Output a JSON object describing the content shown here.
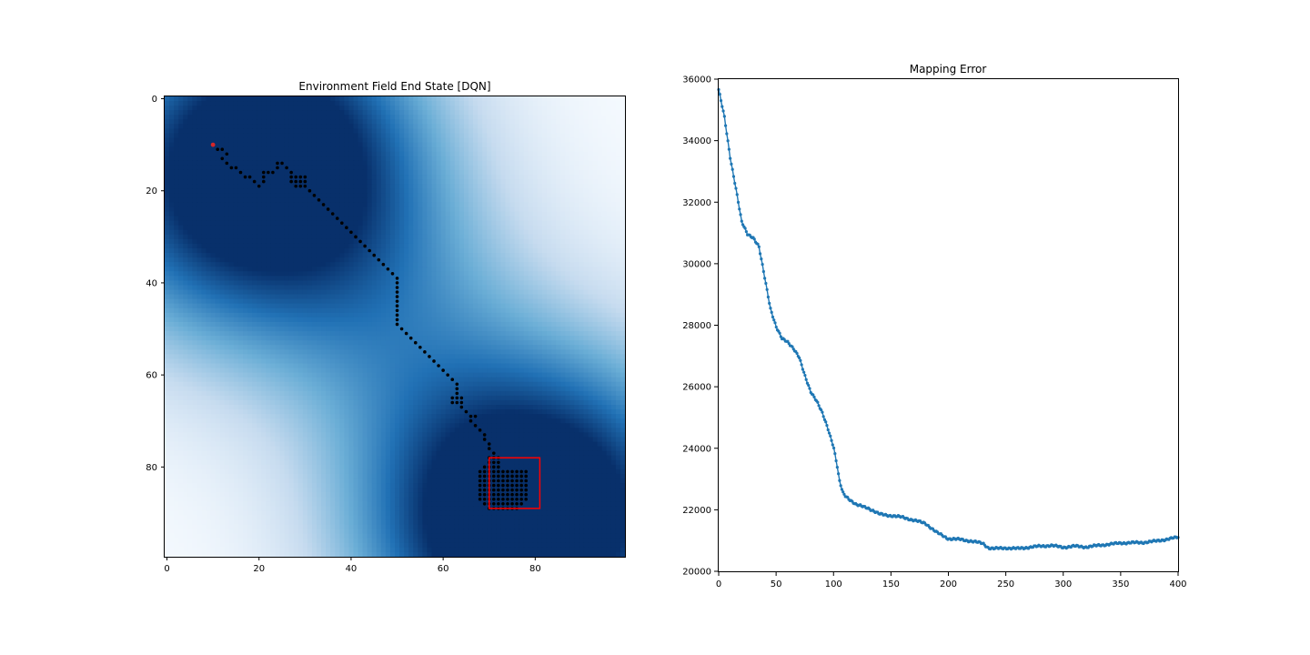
{
  "chart_data": [
    {
      "type": "heatmap",
      "title": "Environment Field End State [DQN]",
      "xlim": [
        0,
        99
      ],
      "ylim": [
        99,
        0
      ],
      "xticks": [
        0,
        20,
        40,
        60,
        80
      ],
      "yticks": [
        0,
        20,
        40,
        60,
        80
      ],
      "colormap": [
        "#f7fbff",
        "#c6dbef",
        "#6baed6",
        "#2171b5",
        "#08306b"
      ],
      "field_centers": [
        {
          "x": 25,
          "y": 10,
          "value": 1.0
        },
        {
          "x": 73,
          "y": 95,
          "value": 1.0
        },
        {
          "x": 5,
          "y": 25,
          "value": 0.45
        },
        {
          "x": 50,
          "y": 48,
          "value": 0.38
        },
        {
          "x": 92,
          "y": 85,
          "value": 0.5
        }
      ],
      "start_point": {
        "x": 10,
        "y": 10,
        "color": "#d62728"
      },
      "path": [
        [
          10,
          10
        ],
        [
          11,
          11
        ],
        [
          12,
          11
        ],
        [
          13,
          12
        ],
        [
          12,
          13
        ],
        [
          13,
          14
        ],
        [
          14,
          15
        ],
        [
          15,
          15
        ],
        [
          16,
          16
        ],
        [
          17,
          17
        ],
        [
          18,
          17
        ],
        [
          19,
          18
        ],
        [
          20,
          19
        ],
        [
          21,
          18
        ],
        [
          21,
          17
        ],
        [
          21,
          16
        ],
        [
          22,
          16
        ],
        [
          23,
          16
        ],
        [
          24,
          15
        ],
        [
          24,
          14
        ],
        [
          25,
          14
        ],
        [
          26,
          15
        ],
        [
          27,
          16
        ],
        [
          27,
          17
        ],
        [
          27,
          18
        ],
        [
          28,
          19
        ],
        [
          29,
          19
        ],
        [
          30,
          19
        ],
        [
          29,
          18
        ],
        [
          30,
          18
        ],
        [
          29,
          17
        ],
        [
          30,
          17
        ],
        [
          28,
          17
        ],
        [
          28,
          18
        ],
        [
          31,
          20
        ],
        [
          32,
          21
        ],
        [
          33,
          22
        ],
        [
          34,
          23
        ],
        [
          35,
          24
        ],
        [
          36,
          25
        ],
        [
          37,
          26
        ],
        [
          38,
          27
        ],
        [
          39,
          28
        ],
        [
          40,
          29
        ],
        [
          41,
          30
        ],
        [
          42,
          31
        ],
        [
          43,
          32
        ],
        [
          44,
          33
        ],
        [
          45,
          34
        ],
        [
          46,
          35
        ],
        [
          47,
          36
        ],
        [
          48,
          37
        ],
        [
          49,
          38
        ],
        [
          50,
          39
        ],
        [
          50,
          40
        ],
        [
          50,
          41
        ],
        [
          50,
          42
        ],
        [
          50,
          43
        ],
        [
          50,
          44
        ],
        [
          50,
          45
        ],
        [
          50,
          46
        ],
        [
          50,
          47
        ],
        [
          50,
          48
        ],
        [
          50,
          49
        ],
        [
          51,
          50
        ],
        [
          52,
          51
        ],
        [
          53,
          52
        ],
        [
          54,
          53
        ],
        [
          55,
          54
        ],
        [
          56,
          55
        ],
        [
          57,
          56
        ],
        [
          58,
          57
        ],
        [
          59,
          58
        ],
        [
          60,
          59
        ],
        [
          61,
          60
        ],
        [
          62,
          61
        ],
        [
          63,
          62
        ],
        [
          63,
          63
        ],
        [
          63,
          64
        ],
        [
          64,
          65
        ],
        [
          63,
          65
        ],
        [
          62,
          65
        ],
        [
          62,
          66
        ],
        [
          63,
          66
        ],
        [
          64,
          66
        ],
        [
          64,
          67
        ],
        [
          65,
          68
        ],
        [
          66,
          69
        ],
        [
          66,
          70
        ],
        [
          67,
          69
        ],
        [
          67,
          71
        ],
        [
          68,
          72
        ],
        [
          69,
          73
        ],
        [
          69,
          74
        ],
        [
          70,
          75
        ],
        [
          70,
          76
        ],
        [
          71,
          77
        ],
        [
          71,
          78
        ],
        [
          70,
          78
        ]
      ],
      "end_cluster": {
        "x_range": [
          68,
          78
        ],
        "y_range": [
          78,
          89
        ]
      },
      "target_box": {
        "x0": 70,
        "x1": 81,
        "y0": 78,
        "y1": 89,
        "color": "#ff0000"
      }
    },
    {
      "type": "line",
      "title": "Mapping Error",
      "xlim": [
        0,
        400
      ],
      "ylim": [
        20000,
        36000
      ],
      "xticks": [
        0,
        50,
        100,
        150,
        200,
        250,
        300,
        350,
        400
      ],
      "yticks": [
        20000,
        22000,
        24000,
        26000,
        28000,
        30000,
        32000,
        34000,
        36000
      ],
      "color": "#1f77b4",
      "anchors": {
        "x": [
          0,
          5,
          10,
          15,
          20,
          25,
          30,
          35,
          40,
          45,
          50,
          55,
          60,
          65,
          70,
          75,
          80,
          85,
          90,
          95,
          100,
          103,
          105,
          108,
          110,
          120,
          130,
          140,
          150,
          160,
          170,
          180,
          190,
          200,
          210,
          220,
          230,
          235,
          240,
          250,
          260,
          270,
          280,
          290,
          300,
          310,
          320,
          330,
          340,
          350,
          360,
          370,
          380,
          390,
          400
        ],
        "y": [
          35600,
          34700,
          33400,
          32400,
          31300,
          30900,
          30800,
          30500,
          29500,
          28500,
          27900,
          27500,
          27400,
          27200,
          26900,
          26300,
          25800,
          25500,
          25100,
          24600,
          24000,
          23400,
          22900,
          22500,
          22400,
          22100,
          22000,
          21800,
          21750,
          21700,
          21600,
          21500,
          21200,
          21000,
          20980,
          20920,
          20850,
          20700,
          20680,
          20700,
          20680,
          20720,
          20760,
          20780,
          20720,
          20760,
          20730,
          20780,
          20820,
          20860,
          20870,
          20880,
          20920,
          20980,
          21050
        ]
      },
      "num_points": 400
    }
  ]
}
